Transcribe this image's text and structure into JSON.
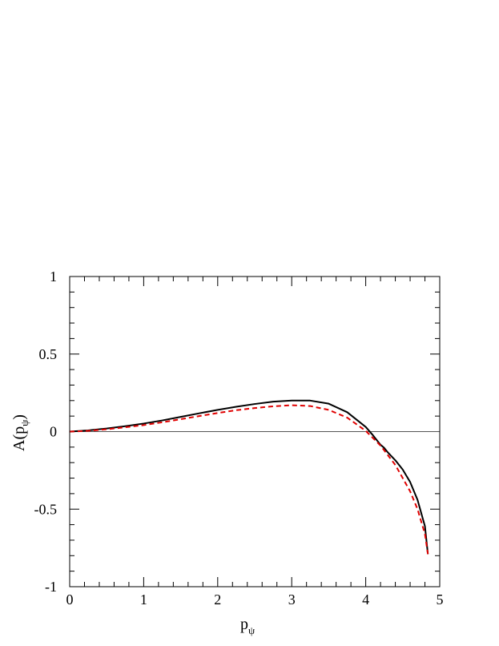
{
  "chart_data": {
    "type": "line",
    "title": "",
    "xlabel": "p",
    "xlabel_subscript": "ψ",
    "ylabel_prefix": "A(p",
    "ylabel_subscript": "ψ",
    "ylabel_suffix": ")",
    "xlim": [
      0,
      5
    ],
    "ylim": [
      -1,
      1
    ],
    "x_ticks": [
      0,
      1,
      2,
      3,
      4,
      5
    ],
    "x_tick_labels": [
      "0",
      "1",
      "2",
      "3",
      "4",
      "5"
    ],
    "y_ticks": [
      -1,
      -0.5,
      0,
      0.5,
      1
    ],
    "y_tick_labels": [
      "-1",
      "-0.5",
      "0",
      "0.5",
      "1"
    ],
    "x_minor_step": 0.2,
    "y_minor_step": 0.1,
    "grid": false,
    "reference_line": {
      "y": 0,
      "color": "#555555"
    },
    "series": [
      {
        "style": "solid",
        "color": "#000000",
        "x": [
          0,
          0.25,
          0.5,
          0.75,
          1.0,
          1.25,
          1.5,
          1.75,
          2.0,
          2.25,
          2.5,
          2.75,
          3.0,
          3.25,
          3.5,
          3.75,
          4.0,
          4.1,
          4.2,
          4.25,
          4.3,
          4.4,
          4.5,
          4.6,
          4.7,
          4.8,
          4.84
        ],
        "y": [
          0.0,
          0.008,
          0.02,
          0.035,
          0.052,
          0.072,
          0.095,
          0.118,
          0.14,
          0.16,
          0.178,
          0.193,
          0.2,
          0.2,
          0.18,
          0.125,
          0.03,
          -0.025,
          -0.085,
          -0.105,
          -0.135,
          -0.185,
          -0.245,
          -0.325,
          -0.44,
          -0.61,
          -0.79
        ]
      },
      {
        "style": "dashed",
        "color": "#e00000",
        "x": [
          0,
          0.25,
          0.5,
          0.75,
          1.0,
          1.25,
          1.5,
          1.75,
          2.0,
          2.25,
          2.5,
          2.75,
          3.0,
          3.25,
          3.5,
          3.75,
          4.0,
          4.2,
          4.4,
          4.6,
          4.7,
          4.8,
          4.84
        ],
        "y": [
          0.0,
          0.005,
          0.015,
          0.028,
          0.042,
          0.06,
          0.08,
          0.1,
          0.12,
          0.138,
          0.152,
          0.163,
          0.17,
          0.165,
          0.14,
          0.09,
          0.005,
          -0.09,
          -0.215,
          -0.385,
          -0.5,
          -0.66,
          -0.79
        ]
      }
    ]
  }
}
